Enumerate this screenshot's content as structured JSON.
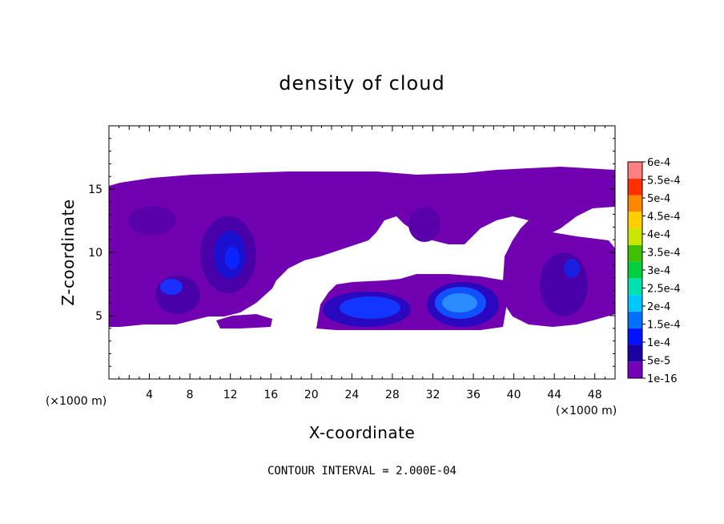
{
  "chart_data": {
    "type": "heatmap",
    "title": "density of cloud",
    "xlabel": "X-coordinate",
    "ylabel": "Z-coordinate",
    "x_unit_label": "(×1000 m)",
    "footer": "CONTOUR INTERVAL = 2.000E-04",
    "xlim": [
      0,
      50
    ],
    "ylim": [
      0,
      20
    ],
    "x_ticks": [
      4,
      8,
      12,
      16,
      20,
      24,
      28,
      32,
      36,
      40,
      44,
      48
    ],
    "y_ticks": [
      5,
      10,
      15
    ],
    "colorbar": {
      "labels": [
        "1e-16",
        "5e-5",
        "1e-4",
        "1.5e-4",
        "2e-4",
        "2.5e-4",
        "3e-4",
        "3.5e-4",
        "4e-4",
        "4.5e-4",
        "5e-4",
        "5.5e-4",
        "6e-4"
      ],
      "colors": [
        "#7400b8",
        "#1a00a0",
        "#0012ff",
        "#0070ff",
        "#00c8ff",
        "#00e0b0",
        "#00d040",
        "#40c000",
        "#c8e600",
        "#ffd000",
        "#ff8800",
        "#ff3000",
        "#ff8080"
      ]
    },
    "regions": {
      "cloud_deck_upper": {
        "level": "1e-16",
        "x": [
          0,
          50
        ],
        "z": [
          4.5,
          15.8
        ]
      },
      "cores": [
        {
          "level": "1e-4",
          "x": [
            9.5,
            13
          ],
          "z": [
            7.5,
            12
          ]
        },
        {
          "level": "5e-5",
          "x": [
            4.5,
            8
          ],
          "z": [
            5.5,
            8
          ]
        },
        {
          "level": "1e-4",
          "x": [
            22,
            30
          ],
          "z": [
            4.3,
            6.8
          ]
        },
        {
          "level": "1.5e-4",
          "x": [
            32,
            37
          ],
          "z": [
            4.5,
            7.3
          ]
        },
        {
          "level": "5e-5",
          "x": [
            44,
            47
          ],
          "z": [
            5,
            9.5
          ]
        }
      ]
    }
  }
}
